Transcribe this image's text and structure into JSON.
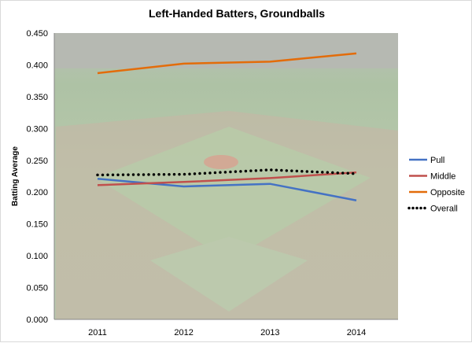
{
  "chart_data": {
    "type": "line",
    "title": "Left-Handed Batters, Groundballs",
    "xlabel": "",
    "ylabel": "Batting Average",
    "categories": [
      "2011",
      "2012",
      "2013",
      "2014"
    ],
    "ylim": [
      0,
      0.45
    ],
    "yticks": [
      "0.000",
      "0.050",
      "0.100",
      "0.150",
      "0.200",
      "0.250",
      "0.300",
      "0.350",
      "0.400",
      "0.450"
    ],
    "grid": false,
    "legend": "right",
    "series": [
      {
        "name": "Pull",
        "values": [
          0.221,
          0.209,
          0.213,
          0.187
        ],
        "color": "#4472c4",
        "style": "solid"
      },
      {
        "name": "Middle",
        "values": [
          0.211,
          0.216,
          0.222,
          0.231
        ],
        "color": "#c0504d",
        "style": "solid"
      },
      {
        "name": "Opposite",
        "values": [
          0.387,
          0.402,
          0.405,
          0.418
        ],
        "color": "#e36c0a",
        "style": "solid"
      },
      {
        "name": "Overall",
        "values": [
          0.227,
          0.228,
          0.235,
          0.229
        ],
        "color": "#000000",
        "style": "dotted"
      }
    ]
  }
}
